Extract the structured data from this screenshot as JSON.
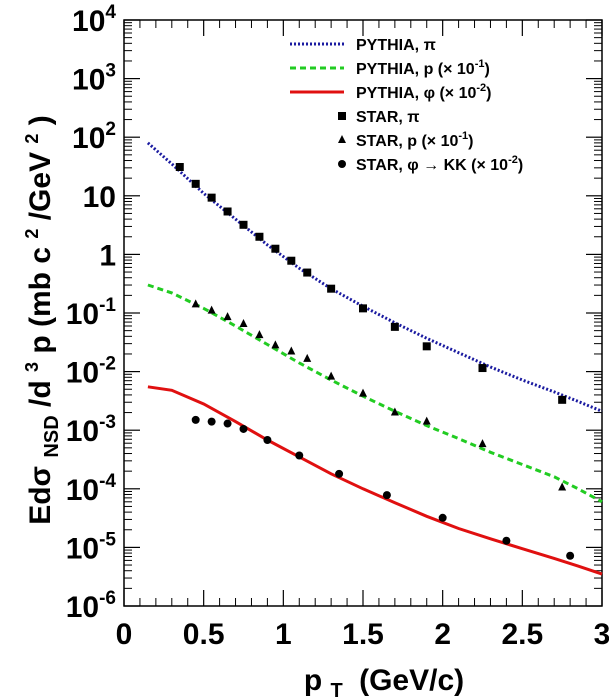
{
  "chart_data": {
    "type": "line",
    "title": "",
    "xlabel": "p",
    "xlabel_sub": "T",
    "xlabel_unit": "(GeV/c)",
    "ylabel_parts": {
      "pre": "Edσ",
      "sub": "NSD",
      "mid": "/d",
      "sup3": "3",
      "post": "p (mb c",
      "sup2a": "2",
      "post2": "/GeV",
      "sup2b": "2",
      "end": ")"
    },
    "xlim": [
      0,
      3
    ],
    "ylim": [
      1e-06,
      10000
    ],
    "yscale": "log",
    "grid": false,
    "legend_position": "top-right",
    "x_ticks": [
      {
        "value": 0,
        "label": "0"
      },
      {
        "value": 0.5,
        "label": "0.5"
      },
      {
        "value": 1,
        "label": "1"
      },
      {
        "value": 1.5,
        "label": "1.5"
      },
      {
        "value": 2,
        "label": "2"
      },
      {
        "value": 2.5,
        "label": "2.5"
      },
      {
        "value": 3,
        "label": "3"
      }
    ],
    "y_ticks": [
      {
        "value": 1e-06,
        "base": "10",
        "exp": "-6"
      },
      {
        "value": 1e-05,
        "base": "10",
        "exp": "-5"
      },
      {
        "value": 0.0001,
        "base": "10",
        "exp": "-4"
      },
      {
        "value": 0.001,
        "base": "10",
        "exp": "-3"
      },
      {
        "value": 0.01,
        "base": "10",
        "exp": "-2"
      },
      {
        "value": 0.1,
        "base": "10",
        "exp": "-1"
      },
      {
        "value": 1,
        "base": "1",
        "exp": ""
      },
      {
        "value": 10,
        "base": "10",
        "exp": ""
      },
      {
        "value": 100,
        "base": "10",
        "exp": "2"
      },
      {
        "value": 1000,
        "base": "10",
        "exp": "3"
      },
      {
        "value": 10000,
        "base": "10",
        "exp": "4"
      }
    ],
    "series": [
      {
        "name": "PYTHIA, π",
        "legend": {
          "main": "PYTHIA, π",
          "exp": "",
          "tail": ""
        },
        "kind": "line",
        "style": "dotted",
        "color": "#1a1aa0",
        "x": [
          0.15,
          0.3,
          0.5,
          0.7,
          0.9,
          1.1,
          1.3,
          1.5,
          1.7,
          1.9,
          2.1,
          2.3,
          2.5,
          2.7,
          2.85,
          3.0
        ],
        "y": [
          80,
          35,
          11,
          4,
          1.45,
          0.58,
          0.26,
          0.13,
          0.068,
          0.037,
          0.021,
          0.012,
          0.0072,
          0.0045,
          0.0031,
          0.0021
        ]
      },
      {
        "name": "PYTHIA, p (× 10⁻¹)",
        "legend": {
          "main": "PYTHIA, p (× 10",
          "exp": "-1",
          "tail": ")"
        },
        "kind": "line",
        "style": "dashed",
        "color": "#22cc22",
        "x": [
          0.15,
          0.3,
          0.5,
          0.7,
          0.9,
          1.1,
          1.3,
          1.5,
          1.7,
          1.9,
          2.1,
          2.3,
          2.5,
          2.7,
          2.85,
          3.0
        ],
        "y": [
          0.3,
          0.22,
          0.12,
          0.06,
          0.029,
          0.014,
          0.0072,
          0.0038,
          0.0021,
          0.0012,
          0.00072,
          0.00042,
          0.00026,
          0.00016,
          0.0001,
          6e-05
        ]
      },
      {
        "name": "PYTHIA, φ (× 10⁻²)",
        "legend": {
          "main": "PYTHIA, φ (× 10",
          "exp": "-2",
          "tail": ")"
        },
        "kind": "line",
        "style": "solid",
        "color": "#e01010",
        "x": [
          0.15,
          0.3,
          0.5,
          0.7,
          0.9,
          1.1,
          1.3,
          1.5,
          1.7,
          1.9,
          2.1,
          2.3,
          2.5,
          2.7,
          2.85,
          3.0
        ],
        "y": [
          0.0055,
          0.0048,
          0.0028,
          0.0014,
          0.00068,
          0.00035,
          0.00018,
          0.0001,
          5.8e-05,
          3.4e-05,
          2.1e-05,
          1.4e-05,
          9.5e-06,
          6.5e-06,
          4.8e-06,
          3.5e-06
        ]
      },
      {
        "name": "STAR, π",
        "legend": {
          "main": "STAR, π",
          "exp": "",
          "tail": ""
        },
        "kind": "points",
        "marker": "square",
        "color": "#000000",
        "x": [
          0.35,
          0.45,
          0.55,
          0.65,
          0.75,
          0.85,
          0.95,
          1.05,
          1.15,
          1.3,
          1.5,
          1.7,
          1.9,
          2.25,
          2.75
        ],
        "y": [
          31,
          16,
          9.3,
          5.4,
          3.2,
          2.0,
          1.25,
          0.78,
          0.49,
          0.26,
          0.12,
          0.058,
          0.027,
          0.0115,
          0.0033
        ]
      },
      {
        "name": "STAR, p (× 10⁻¹)",
        "legend": {
          "main": "STAR, p (× 10",
          "exp": "-1",
          "tail": ")"
        },
        "kind": "points",
        "marker": "triangle",
        "color": "#000000",
        "x": [
          0.45,
          0.55,
          0.65,
          0.75,
          0.85,
          0.95,
          1.05,
          1.15,
          1.3,
          1.5,
          1.7,
          1.9,
          2.25,
          2.75
        ],
        "y": [
          0.14,
          0.11,
          0.085,
          0.065,
          0.042,
          0.028,
          0.022,
          0.0165,
          0.0082,
          0.0042,
          0.002,
          0.0014,
          0.00058,
          0.000105
        ]
      },
      {
        "name": "STAR, φ → KK (× 10⁻²)",
        "legend": {
          "main": "STAR, φ → KK (× 10",
          "exp": "-2",
          "tail": ")"
        },
        "kind": "points",
        "marker": "circle",
        "color": "#000000",
        "x": [
          0.45,
          0.55,
          0.65,
          0.75,
          0.9,
          1.1,
          1.35,
          1.65,
          2.0,
          2.4,
          2.8
        ],
        "y": [
          0.0015,
          0.0014,
          0.0013,
          0.00105,
          0.00068,
          0.00037,
          0.00018,
          7.8e-05,
          3.2e-05,
          1.3e-05,
          7.2e-06
        ]
      }
    ]
  }
}
